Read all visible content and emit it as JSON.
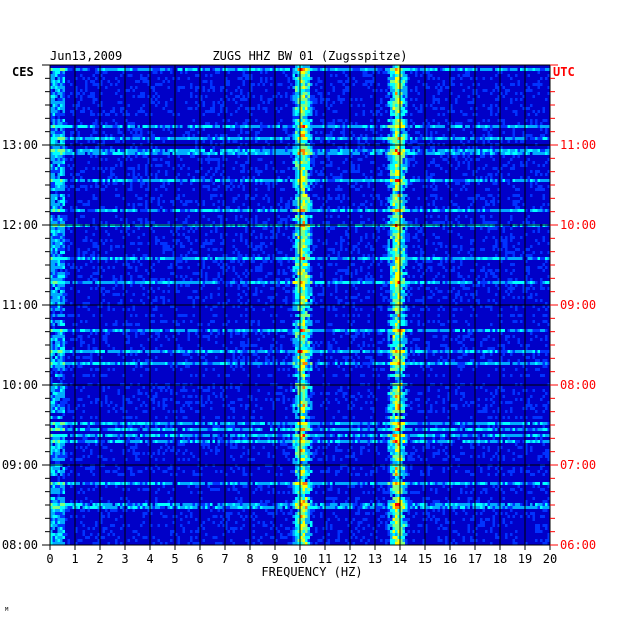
{
  "header": {
    "date": "Jun13,2009",
    "station": "ZUGS HHZ BW 01 (Zugsspitze)",
    "left_zone": "CES",
    "right_zone": "UTC"
  },
  "colors": {
    "background": "#ffffff",
    "left_axis": "#000000",
    "right_axis": "#ff0000",
    "grid": "#000000",
    "colormap": [
      "#00007a",
      "#0000c8",
      "#0033ff",
      "#00aaff",
      "#00ffff",
      "#80ff80",
      "#ffff00",
      "#ff8000",
      "#ff0000"
    ]
  },
  "footer_mark": "ᴹ",
  "chart_data": {
    "type": "heatmap",
    "title": "ZUGS HHZ BW 01 (Zugsspitze)",
    "xlabel": "FREQUENCY (HZ)",
    "xlim": [
      0,
      20
    ],
    "x_ticks": [
      "0",
      "1",
      "2",
      "3",
      "4",
      "5",
      "6",
      "7",
      "8",
      "9",
      "10",
      "11",
      "12",
      "13",
      "14",
      "15",
      "16",
      "17",
      "18",
      "19",
      "20"
    ],
    "y_range_hours": [
      8,
      14
    ],
    "y_ticks_left": [
      "08:00",
      "09:00",
      "10:00",
      "11:00",
      "12:00",
      "13:00"
    ],
    "y_ticks_right": [
      "06:00",
      "07:00",
      "08:00",
      "09:00",
      "10:00",
      "11:00"
    ],
    "grid": true,
    "dominant_bands_hz": [
      10.1,
      13.9
    ]
  }
}
